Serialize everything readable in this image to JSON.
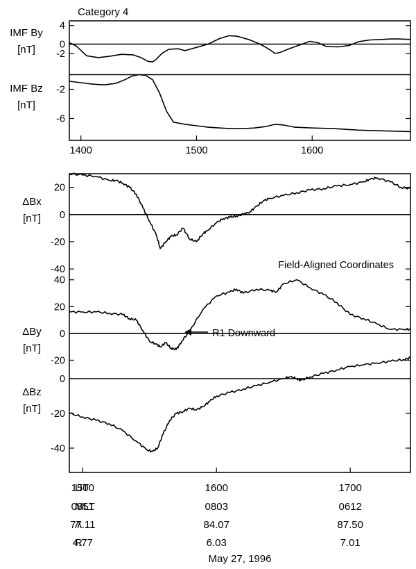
{
  "chart_data": [
    {
      "type": "line",
      "title": "Category 4",
      "xlim": [
        1390,
        1685
      ],
      "xticks": [
        1400,
        1500,
        1600
      ],
      "panels": [
        {
          "ylabel": [
            "IMF By",
            "[nT]"
          ],
          "ylim": [
            -5,
            5
          ],
          "yticks": [
            4,
            0,
            -2
          ],
          "zero_line": 0,
          "series": [
            {
              "x": [
                1390,
                1396,
                1405,
                1415,
                1425,
                1435,
                1445,
                1452,
                1458,
                1462,
                1465,
                1470,
                1476,
                1484,
                1490,
                1500,
                1510,
                1520,
                1528,
                1535,
                1545,
                1555,
                1562,
                1568,
                1572,
                1580,
                1590,
                1598,
                1605,
                1612,
                1622,
                1632,
                1640,
                1650,
                1660,
                1668,
                1675,
                1685
              ],
              "y": [
                0.3,
                -0.4,
                -2.5,
                -2.9,
                -2.6,
                -2.2,
                -2.3,
                -2.9,
                -3.7,
                -3.8,
                -3.3,
                -2.0,
                -1.1,
                -1.0,
                -1.4,
                -0.7,
                0.0,
                1.2,
                1.8,
                1.7,
                1.0,
                0.0,
                -1.0,
                -2.0,
                -1.8,
                -1.0,
                -0.1,
                0.6,
                0.3,
                -0.5,
                -0.6,
                -0.3,
                0.5,
                0.9,
                1.0,
                1.1,
                1.1,
                1.0
              ]
            }
          ]
        },
        {
          "ylabel": [
            "IMF Bz",
            "[nT]"
          ],
          "ylim": [
            -9,
            1
          ],
          "yticks": [
            -2,
            -6
          ],
          "zero_line": 0,
          "series": [
            {
              "x": [
                1390,
                1400,
                1410,
                1420,
                1430,
                1438,
                1444,
                1450,
                1456,
                1462,
                1468,
                1474,
                1480,
                1490,
                1500,
                1510,
                1520,
                1530,
                1540,
                1550,
                1560,
                1568,
                1575,
                1585,
                1600,
                1620,
                1640,
                1660,
                1685
              ],
              "y": [
                -0.9,
                -1.1,
                -1.3,
                -1.4,
                -1.2,
                -0.7,
                -0.2,
                0.0,
                -0.1,
                -0.7,
                -2.5,
                -5.0,
                -6.5,
                -6.8,
                -7.0,
                -7.2,
                -7.3,
                -7.4,
                -7.4,
                -7.3,
                -7.1,
                -6.8,
                -6.9,
                -7.2,
                -7.3,
                -7.4,
                -7.6,
                -7.7,
                -7.8
              ]
            }
          ]
        }
      ]
    },
    {
      "type": "line",
      "annotation": "Field-Aligned Coordinates",
      "arrow_annotation": "R1 Downward",
      "xlim": [
        1490,
        1745
      ],
      "xticks": [
        1500,
        1600,
        1700
      ],
      "footer": [
        {
          "label": "UT",
          "values": [
            "1500",
            "1600",
            "1700"
          ]
        },
        {
          "label": "MLT",
          "values": [
            "0851",
            "0803",
            "0612"
          ]
        },
        {
          "label": "Λ",
          "values": [
            "77.11",
            "84.07",
            "87.50"
          ]
        },
        {
          "label": "R",
          "values": [
            "4.77",
            "6.03",
            "7.01"
          ]
        }
      ],
      "date": "May 27, 1996",
      "panels": [
        {
          "ylabel": [
            "ΔBx",
            "[nT]"
          ],
          "ylim": [
            -44,
            30
          ],
          "yticks": [
            20,
            0,
            -20,
            -40
          ],
          "zero_line": 0,
          "series": [
            {
              "x": [
                1490,
                1500,
                1510,
                1520,
                1525,
                1530,
                1535,
                1540,
                1545,
                1550,
                1555,
                1558,
                1562,
                1566,
                1570,
                1575,
                1580,
                1585,
                1590,
                1593,
                1600,
                1605,
                1610,
                1615,
                1620,
                1625,
                1630,
                1635,
                1640,
                1650,
                1660,
                1670,
                1680,
                1690,
                1700,
                1710,
                1715,
                1720,
                1730,
                1738,
                1745
              ],
              "y": [
                30,
                29,
                28,
                25,
                25,
                23,
                20,
                15,
                5,
                -5,
                -15,
                -25,
                -20,
                -16,
                -15,
                -10,
                -18,
                -20,
                -14,
                -12,
                -6,
                -3,
                -2,
                -1,
                0,
                2,
                6,
                10,
                12,
                14,
                16,
                18,
                19,
                21,
                22,
                24,
                26,
                27,
                24,
                20,
                19
              ]
            }
          ]
        },
        {
          "ylabel": [
            "ΔBy",
            "[nT]"
          ],
          "ylim": [
            -26,
            44
          ],
          "yticks": [
            40,
            20,
            0,
            -20
          ],
          "zero_line": 0,
          "series": [
            {
              "x": [
                1490,
                1500,
                1510,
                1520,
                1530,
                1535,
                1540,
                1545,
                1550,
                1555,
                1558,
                1562,
                1566,
                1570,
                1574,
                1580,
                1590,
                1600,
                1610,
                1615,
                1620,
                1630,
                1640,
                1645,
                1650,
                1660,
                1670,
                1680,
                1690,
                1700,
                1710,
                1720,
                1730,
                1740,
                1745
              ],
              "y": [
                16,
                16,
                16,
                15,
                14,
                11,
                10,
                2,
                -6,
                -8,
                -10,
                -7,
                -11,
                -12,
                -6,
                2,
                18,
                28,
                31,
                33,
                30,
                33,
                32,
                31,
                37,
                40,
                34,
                29,
                23,
                14,
                11,
                7,
                3,
                3,
                3
              ]
            }
          ]
        },
        {
          "ylabel": [
            "ΔBz",
            "[nT]"
          ],
          "ylim": [
            -54,
            6
          ],
          "yticks": [
            0,
            -20,
            -40
          ],
          "zero_line": 0,
          "series": [
            {
              "x": [
                1490,
                1500,
                1510,
                1520,
                1530,
                1540,
                1548,
                1552,
                1556,
                1560,
                1565,
                1570,
                1575,
                1580,
                1585,
                1590,
                1595,
                1600,
                1610,
                1620,
                1630,
                1640,
                1650,
                1655,
                1660,
                1663,
                1670,
                1680,
                1690,
                1700,
                1710,
                1720,
                1730,
                1740,
                1745
              ],
              "y": [
                -20,
                -22,
                -24,
                -26,
                -30,
                -36,
                -41,
                -42,
                -40,
                -32,
                -24,
                -20,
                -19,
                -17,
                -18,
                -16,
                -13,
                -10,
                -8,
                -6,
                -4,
                -2,
                0,
                1,
                0,
                -1,
                1,
                3,
                5,
                7,
                8,
                9,
                10,
                11,
                12
              ]
            }
          ]
        }
      ]
    }
  ]
}
